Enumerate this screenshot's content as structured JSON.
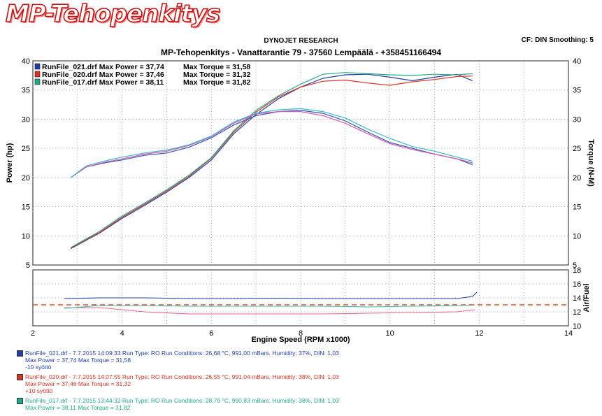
{
  "header": {
    "logo": "MP-Tehopenkitys",
    "manufacturer": "DYNOJET RESEARCH",
    "settings": "CF: DIN  Smoothing: 5",
    "subtitle": "MP-Tehopenkitys - Vanattarantie 79 - 37560 Lempäälä - +358451166494"
  },
  "colors": {
    "run021": "#1f3fae",
    "run020": "#dd3322",
    "run017": "#22aa88",
    "afr_target": "#e05522"
  },
  "chart_data": [
    {
      "type": "line",
      "title": "",
      "xlabel": "",
      "ylabel": "Power (hp)",
      "y2label": "Torque (N-M)",
      "xlim": [
        2,
        14
      ],
      "ylim": [
        5,
        40
      ],
      "y2lim": [
        5,
        40
      ],
      "yticks": [
        5,
        10,
        15,
        20,
        25,
        30,
        35,
        40
      ],
      "grid": true,
      "legend_position": "top-left",
      "series": [
        {
          "name": "RunFile_021.drf",
          "kind": "power",
          "color": "#1f3fae",
          "x": [
            2.85,
            3.5,
            4.0,
            4.5,
            5.0,
            5.5,
            6.0,
            6.5,
            7.0,
            7.5,
            8.0,
            8.5,
            9.0,
            9.5,
            10.0,
            10.5,
            11.0,
            11.5,
            11.85
          ],
          "y": [
            7.8,
            10.5,
            13.0,
            15.2,
            17.5,
            20.0,
            23.0,
            27.5,
            30.8,
            33.5,
            35.5,
            37.0,
            37.6,
            37.7,
            37.2,
            36.6,
            37.2,
            37.7,
            36.6
          ]
        },
        {
          "name": "RunFile_020.drf",
          "kind": "power",
          "color": "#dd3322",
          "x": [
            2.85,
            3.5,
            4.0,
            4.5,
            5.0,
            5.5,
            6.0,
            6.5,
            7.0,
            7.5,
            8.0,
            8.5,
            9.0,
            9.5,
            10.0,
            10.5,
            11.0,
            11.5,
            11.85
          ],
          "y": [
            7.9,
            10.6,
            13.2,
            15.4,
            17.7,
            20.2,
            23.3,
            27.8,
            31.2,
            33.8,
            35.5,
            36.5,
            36.7,
            36.2,
            35.8,
            36.4,
            36.8,
            37.3,
            37.4
          ]
        },
        {
          "name": "RunFile_017.drf",
          "kind": "power",
          "color": "#22aa88",
          "x": [
            2.85,
            3.5,
            4.0,
            4.5,
            5.0,
            5.5,
            6.0,
            6.5,
            7.0,
            7.5,
            8.0,
            8.5,
            9.0,
            9.5,
            10.0,
            10.5,
            11.0,
            11.5,
            11.85
          ],
          "y": [
            8.0,
            10.8,
            13.4,
            15.6,
            17.9,
            20.4,
            23.4,
            28.0,
            31.5,
            34.0,
            36.0,
            37.7,
            38.0,
            37.8,
            37.6,
            37.5,
            37.7,
            37.6,
            37.8
          ]
        },
        {
          "name": "RunFile_021.drf",
          "kind": "torque",
          "color": "#3355bb",
          "x": [
            2.85,
            3.2,
            3.6,
            4.0,
            4.5,
            5.0,
            5.5,
            6.0,
            6.5,
            7.0,
            7.5,
            8.0,
            8.5,
            9.0,
            9.5,
            10.0,
            10.5,
            11.0,
            11.5,
            11.85
          ],
          "y": [
            20.0,
            21.8,
            22.5,
            23.0,
            23.8,
            24.2,
            25.2,
            26.8,
            29.0,
            30.6,
            31.3,
            31.5,
            31.0,
            29.7,
            27.8,
            26.0,
            25.0,
            24.0,
            23.2,
            22.2
          ]
        },
        {
          "name": "RunFile_020.drf",
          "kind": "torque",
          "color": "#dd55aa",
          "x": [
            2.85,
            3.2,
            3.6,
            4.0,
            4.5,
            5.0,
            5.5,
            6.0,
            6.5,
            7.0,
            7.5,
            8.0,
            8.5,
            9.0,
            9.5,
            10.0,
            10.5,
            11.0,
            11.5,
            11.85
          ],
          "y": [
            20.0,
            21.8,
            22.6,
            23.2,
            24.0,
            24.5,
            25.5,
            27.0,
            29.3,
            30.9,
            31.3,
            31.3,
            30.6,
            29.3,
            27.5,
            25.8,
            24.8,
            24.0,
            23.2,
            22.5
          ]
        },
        {
          "name": "RunFile_017.drf",
          "kind": "torque",
          "color": "#33bbcc",
          "x": [
            2.85,
            3.2,
            3.6,
            4.0,
            4.5,
            5.0,
            5.5,
            6.0,
            6.5,
            7.0,
            7.5,
            8.0,
            8.5,
            9.0,
            9.5,
            10.0,
            10.5,
            11.0,
            11.5,
            11.85
          ],
          "y": [
            20.0,
            22.0,
            22.8,
            23.5,
            24.2,
            24.7,
            25.6,
            27.1,
            29.5,
            31.0,
            31.6,
            31.8,
            31.3,
            30.2,
            28.3,
            26.7,
            25.3,
            24.5,
            23.5,
            22.8
          ]
        }
      ]
    },
    {
      "type": "line",
      "xlabel": "Engine Speed (RPM x1000)",
      "ylabel": "Air/Fuel",
      "xlim": [
        2,
        14
      ],
      "ylim": [
        10,
        18
      ],
      "xticks": [
        2,
        4,
        6,
        8,
        10,
        12,
        14
      ],
      "yticks": [
        10,
        12,
        14,
        16,
        18
      ],
      "grid": true,
      "series": [
        {
          "name": "RunFile_021.drf",
          "color": "#1f3fae",
          "x": [
            2.7,
            3.5,
            4.5,
            5.5,
            6.5,
            7.5,
            8.5,
            9.5,
            10.5,
            11.5,
            11.85,
            11.95
          ],
          "y": [
            13.9,
            14.0,
            14.0,
            13.9,
            13.9,
            13.95,
            13.9,
            13.9,
            13.9,
            13.9,
            14.2,
            14.8
          ]
        },
        {
          "name": "RunFile_020.drf",
          "color": "#ee6688",
          "x": [
            2.7,
            3.5,
            4.5,
            5.5,
            6.5,
            7.5,
            8.5,
            9.5,
            10.5,
            11.5,
            11.9
          ],
          "y": [
            12.6,
            12.6,
            12.0,
            11.7,
            11.7,
            11.7,
            11.7,
            11.8,
            11.9,
            12.0,
            12.3
          ]
        },
        {
          "name": "RunFile_017.drf",
          "color": "#33bbaa",
          "x": [
            2.7,
            3.5,
            4.5,
            5.5,
            6.5,
            7.5,
            8.5,
            9.5,
            10.5,
            11.5,
            11.9
          ],
          "y": [
            12.5,
            12.9,
            12.9,
            12.8,
            12.8,
            12.8,
            12.8,
            12.7,
            12.8,
            12.9,
            13.0
          ]
        },
        {
          "name": "AFR target",
          "color": "#e05522",
          "dashed": true,
          "x": [
            2.0,
            14.0
          ],
          "y": [
            13.0,
            13.0
          ]
        }
      ]
    }
  ],
  "legend": [
    {
      "file": "RunFile_021.drf",
      "max_power": "Max Power = 37,74",
      "max_torque": "Max Torque = 31,58",
      "color": "#1f3fae"
    },
    {
      "file": "RunFile_020.drf",
      "max_power": "Max Power = 37,46",
      "max_torque": "Max Torque = 31,32",
      "color": "#dd3322"
    },
    {
      "file": "RunFile_017.drf",
      "max_power": "Max Power = 38,11",
      "max_torque": "Max Torque = 31,82",
      "color": "#22aa88"
    }
  ],
  "runs": [
    {
      "line1": "RunFile_021.drf - 7.7.2015 14:09:33  Run Type: RO  Run Conditions: 26,68 °C, 991,00 mBars,  Humidity:  37%, DIN: 1,03",
      "line2": "Max Power = 37,74  Max Torque = 31,58",
      "line3": "-10 syöttö",
      "color": "#1f3fae"
    },
    {
      "line1": "RunFile_020.drf - 7.7.2015 14:07:55  Run Type: RO  Run Conditions: 26,55 °C, 991,04 mBars,  Humidity:  38%, DIN: 1,03",
      "line2": "Max Power = 37,46  Max Torque = 31,32",
      "line3": "+10 syöttö",
      "color": "#dd3322"
    },
    {
      "line1": "RunFile_017.drf - 7.7.2015 13:44:32  Run Type: RO  Run Conditions: 28,79 °C, 990,83 mBars,  Humidity:  38%, DIN: 1,03",
      "line2": "Max Power = 38,11  Max Torque = 31,82",
      "line3": "",
      "color": "#22aa88"
    }
  ]
}
